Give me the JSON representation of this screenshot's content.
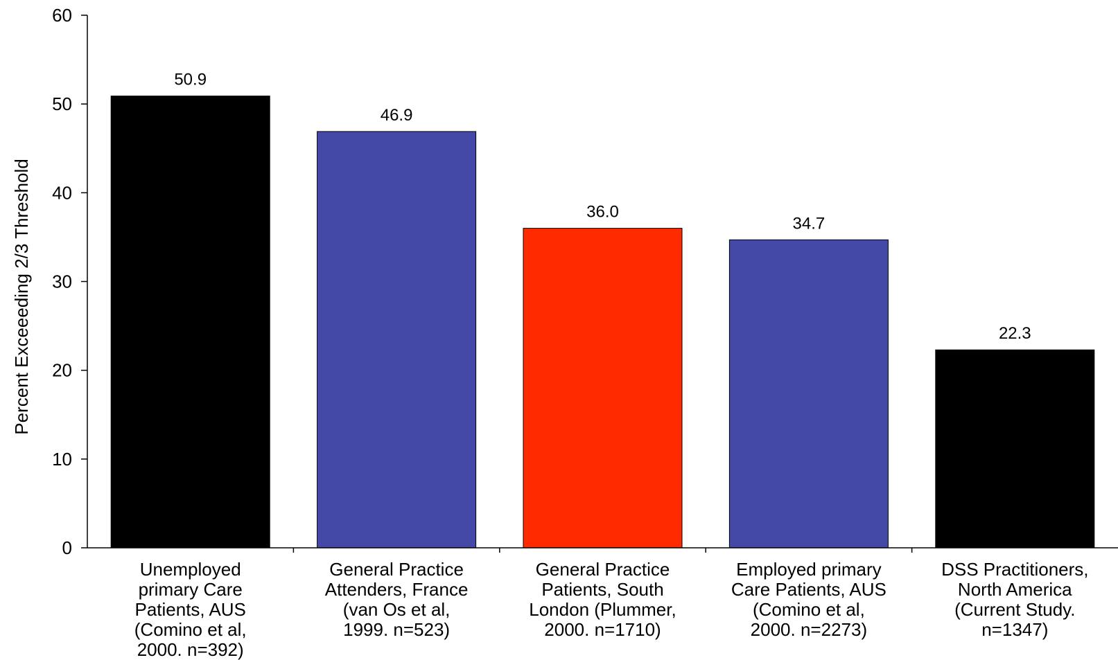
{
  "chart_data": {
    "type": "bar",
    "title": "",
    "xlabel": "",
    "ylabel": "Percent Exceeeding 2/3 Threshold",
    "ylim": [
      0,
      60
    ],
    "yticks": [
      0,
      10,
      20,
      30,
      40,
      50,
      60
    ],
    "grid": false,
    "legend": "none",
    "categories": [
      [
        "Unemployed",
        "primary Care",
        "Patients, AUS",
        "(Comino et al,",
        "2000. n=392)"
      ],
      [
        "General Practice",
        "Attenders, France",
        "(van Os et al,",
        "1999. n=523)"
      ],
      [
        "General Practice",
        "Patients, South",
        "London (Plummer,",
        "2000. n=1710)"
      ],
      [
        "Employed primary",
        "Care Patients, AUS",
        "(Comino et al,",
        "2000. n=2273)"
      ],
      [
        "DSS Practitioners,",
        "North America",
        "(Current Study.",
        "n=1347)"
      ]
    ],
    "values": [
      50.9,
      46.9,
      36.0,
      34.7,
      22.3
    ],
    "value_labels": [
      "50.9",
      "46.9",
      "36.0",
      "34.7",
      "22.3"
    ],
    "bar_colors": [
      "#000000",
      "#4449a8",
      "#ff2a00",
      "#4449a8",
      "#000000"
    ]
  }
}
